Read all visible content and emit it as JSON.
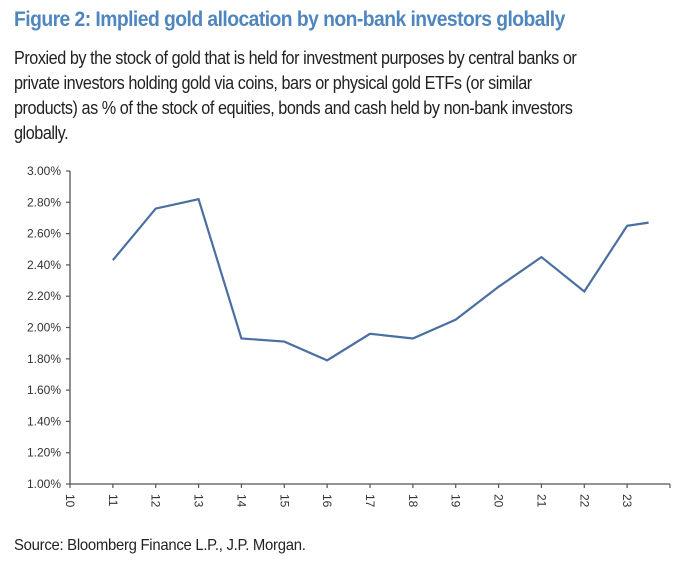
{
  "header": {
    "title": "Figure 2: Implied gold allocation by non-bank investors globally",
    "subtitle_lines": [
      "Proxied by the stock of gold that is held for investment purposes by central banks or",
      "private investors holding gold via coins, bars or physical gold ETFs (or similar",
      "products) as % of the stock of equities, bonds and cash held by non-bank investors",
      "globally."
    ]
  },
  "source": "Source: Bloomberg Finance L.P., J.P. Morgan.",
  "colors": {
    "title": "#4f86be",
    "line": "#4a6fa0",
    "axis": "#555555"
  },
  "chart_data": {
    "type": "line",
    "title": "",
    "xlabel": "",
    "ylabel": "",
    "x_ticks": [
      "10",
      "11",
      "12",
      "13",
      "14",
      "15",
      "16",
      "17",
      "18",
      "19",
      "20",
      "21",
      "22",
      "23"
    ],
    "y_ticks": [
      "1.00%",
      "1.20%",
      "1.40%",
      "1.60%",
      "1.80%",
      "2.00%",
      "2.20%",
      "2.40%",
      "2.60%",
      "2.80%",
      "3.00%"
    ],
    "xlim": [
      10,
      24
    ],
    "ylim": [
      1.0,
      3.0
    ],
    "grid": false,
    "series": [
      {
        "x": [
          11,
          12,
          13,
          14,
          15,
          16,
          17,
          18,
          19,
          20,
          21,
          22,
          23,
          23.5
        ],
        "y": [
          2.43,
          2.76,
          2.82,
          1.93,
          1.91,
          1.79,
          1.96,
          1.93,
          2.05,
          2.26,
          2.45,
          2.23,
          2.65,
          2.67
        ]
      }
    ]
  }
}
